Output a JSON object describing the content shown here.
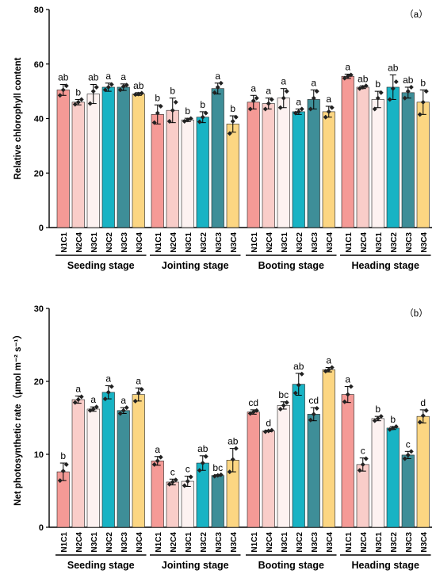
{
  "chart_data": [
    {
      "type": "bar",
      "panel_label": "（a）",
      "ylabel": "Relative chlorophyll content",
      "ylim": [
        0,
        80
      ],
      "yticks": [
        0,
        20,
        40,
        60,
        80
      ],
      "groups": [
        {
          "name": "Seeding stage",
          "bars": [
            {
              "label": "N1C1",
              "value": 50.5,
              "err": 2.0,
              "sig": "ab",
              "points": [
                48.5,
                50.5,
                52.0
              ]
            },
            {
              "label": "N2C4",
              "value": 46.0,
              "err": 1.0,
              "sig": "b",
              "points": [
                45.2,
                46.0,
                47.0
              ]
            },
            {
              "label": "N3C1",
              "value": 49.0,
              "err": 3.5,
              "sig": "ab",
              "points": [
                45.5,
                50.0,
                51.5
              ]
            },
            {
              "label": "N3C2",
              "value": 51.5,
              "err": 1.5,
              "sig": "a",
              "points": [
                50.5,
                51.5,
                52.5
              ]
            },
            {
              "label": "N3C3",
              "value": 51.5,
              "err": 1.2,
              "sig": "a",
              "points": [
                50.5,
                51.8,
                52.3
              ]
            },
            {
              "label": "N3C4",
              "value": 49.0,
              "err": 0.5,
              "sig": "ab",
              "points": [
                48.8,
                49.0,
                49.3
              ]
            }
          ]
        },
        {
          "name": "Jointing stage",
          "bars": [
            {
              "label": "N1C1",
              "value": 41.5,
              "err": 3.5,
              "sig": "b",
              "points": [
                38.5,
                42.0,
                44.5
              ]
            },
            {
              "label": "N2C4",
              "value": 43.0,
              "err": 4.5,
              "sig": "b",
              "points": [
                39.0,
                43.0,
                46.0
              ]
            },
            {
              "label": "N3C1",
              "value": 39.5,
              "err": 0.6,
              "sig": "b",
              "points": [
                39.0,
                39.5,
                40.0
              ]
            },
            {
              "label": "N3C2",
              "value": 40.5,
              "err": 2.0,
              "sig": "b",
              "points": [
                38.8,
                40.5,
                42.0
              ]
            },
            {
              "label": "N3C3",
              "value": 51.0,
              "err": 2.0,
              "sig": "a",
              "points": [
                49.5,
                51.5,
                53.0
              ]
            },
            {
              "label": "N3C4",
              "value": 38.0,
              "err": 3.0,
              "sig": "b",
              "points": [
                34.5,
                39.0,
                40.5
              ]
            }
          ]
        },
        {
          "name": "Booting stage",
          "bars": [
            {
              "label": "N1C1",
              "value": 46.0,
              "err": 2.5,
              "sig": "a",
              "points": [
                43.5,
                46.5,
                47.5
              ]
            },
            {
              "label": "N2C4",
              "value": 45.5,
              "err": 2.0,
              "sig": "a",
              "points": [
                43.5,
                45.5,
                47.0
              ]
            },
            {
              "label": "N3C1",
              "value": 47.5,
              "err": 3.5,
              "sig": "a",
              "points": [
                44.0,
                47.5,
                50.0
              ]
            },
            {
              "label": "N3C2",
              "value": 42.5,
              "err": 1.0,
              "sig": "a",
              "points": [
                42.0,
                42.5,
                43.5
              ]
            },
            {
              "label": "N3C3",
              "value": 47.0,
              "err": 3.5,
              "sig": "a",
              "points": [
                43.5,
                47.5,
                50.0
              ]
            },
            {
              "label": "N3C4",
              "value": 42.5,
              "err": 2.0,
              "sig": "a",
              "points": [
                40.5,
                42.5,
                44.0
              ]
            }
          ]
        },
        {
          "name": "Heading stage",
          "bars": [
            {
              "label": "N1C1",
              "value": 55.5,
              "err": 0.8,
              "sig": "a",
              "points": [
                54.8,
                55.5,
                56.0
              ]
            },
            {
              "label": "N2C4",
              "value": 51.5,
              "err": 0.5,
              "sig": "ab",
              "points": [
                51.0,
                51.5,
                52.0
              ]
            },
            {
              "label": "N3C1",
              "value": 47.0,
              "err": 3.0,
              "sig": "b",
              "points": [
                43.5,
                47.5,
                49.5
              ]
            },
            {
              "label": "N3C2",
              "value": 51.5,
              "err": 4.5,
              "sig": "ab",
              "points": [
                47.0,
                51.0,
                53.5
              ]
            },
            {
              "label": "N3C3",
              "value": 49.5,
              "err": 2.0,
              "sig": "ab",
              "points": [
                47.5,
                50.0,
                51.5
              ]
            },
            {
              "label": "N3C4",
              "value": 46.0,
              "err": 4.5,
              "sig": "b",
              "points": [
                41.5,
                46.0,
                50.0
              ]
            }
          ]
        }
      ]
    },
    {
      "type": "bar",
      "panel_label": "（b）",
      "ylabel": "Net photosynthetic rate（μmol m⁻² s⁻¹）",
      "ylim": [
        0,
        30
      ],
      "yticks": [
        0,
        10,
        20,
        30
      ],
      "groups": [
        {
          "name": "Seeding stage",
          "bars": [
            {
              "label": "N1C1",
              "value": 7.6,
              "err": 1.2,
              "sig": "b",
              "points": [
                6.4,
                7.7,
                8.6
              ]
            },
            {
              "label": "N2C4",
              "value": 17.5,
              "err": 0.5,
              "sig": "a",
              "points": [
                17.1,
                17.5,
                17.9
              ]
            },
            {
              "label": "N3C1",
              "value": 16.2,
              "err": 0.3,
              "sig": "a",
              "points": [
                16.0,
                16.2,
                16.5
              ]
            },
            {
              "label": "N3C2",
              "value": 18.5,
              "err": 0.9,
              "sig": "a",
              "points": [
                17.6,
                18.5,
                19.3
              ]
            },
            {
              "label": "N3C3",
              "value": 16.0,
              "err": 0.4,
              "sig": "a",
              "points": [
                15.6,
                16.0,
                16.4
              ]
            },
            {
              "label": "N3C4",
              "value": 18.2,
              "err": 0.9,
              "sig": "a",
              "points": [
                17.3,
                18.4,
                18.9
              ]
            }
          ]
        },
        {
          "name": "Jointing stage",
          "bars": [
            {
              "label": "N1C1",
              "value": 9.1,
              "err": 0.6,
              "sig": "a",
              "points": [
                8.6,
                9.1,
                9.6
              ]
            },
            {
              "label": "N2C4",
              "value": 6.2,
              "err": 0.4,
              "sig": "c",
              "points": [
                5.9,
                6.2,
                6.5
              ]
            },
            {
              "label": "N3C1",
              "value": 6.3,
              "err": 0.7,
              "sig": "c",
              "points": [
                5.7,
                6.3,
                6.9
              ]
            },
            {
              "label": "N3C2",
              "value": 8.8,
              "err": 1.0,
              "sig": "ab",
              "points": [
                7.8,
                8.8,
                9.7
              ]
            },
            {
              "label": "N3C3",
              "value": 7.1,
              "err": 0.1,
              "sig": "bc",
              "points": [
                7.0,
                7.1,
                7.2
              ]
            },
            {
              "label": "N3C4",
              "value": 9.2,
              "err": 1.6,
              "sig": "ab",
              "points": [
                7.6,
                9.3,
                10.8
              ]
            }
          ]
        },
        {
          "name": "Booting stage",
          "bars": [
            {
              "label": "N1C1",
              "value": 15.8,
              "err": 0.3,
              "sig": "cd",
              "points": [
                15.6,
                15.8,
                16.0
              ]
            },
            {
              "label": "N2C4",
              "value": 13.2,
              "err": 0.1,
              "sig": "d",
              "points": [
                13.1,
                13.2,
                13.3
              ]
            },
            {
              "label": "N3C1",
              "value": 16.7,
              "err": 0.5,
              "sig": "bc",
              "points": [
                16.2,
                16.7,
                17.1
              ]
            },
            {
              "label": "N3C2",
              "value": 19.6,
              "err": 1.5,
              "sig": "ab",
              "points": [
                18.4,
                19.5,
                21.0
              ]
            },
            {
              "label": "N3C3",
              "value": 15.5,
              "err": 0.9,
              "sig": "cd",
              "points": [
                14.7,
                15.5,
                16.3
              ]
            },
            {
              "label": "N3C4",
              "value": 21.6,
              "err": 0.3,
              "sig": "a",
              "points": [
                21.4,
                21.6,
                21.9
              ]
            }
          ]
        },
        {
          "name": "Heading stage",
          "bars": [
            {
              "label": "N1C1",
              "value": 18.2,
              "err": 1.1,
              "sig": "a",
              "points": [
                17.2,
                18.2,
                19.3
              ]
            },
            {
              "label": "N2C4",
              "value": 8.6,
              "err": 0.9,
              "sig": "c",
              "points": [
                7.8,
                8.6,
                9.4
              ]
            },
            {
              "label": "N3C1",
              "value": 14.9,
              "err": 0.3,
              "sig": "b",
              "points": [
                14.6,
                14.9,
                15.2
              ]
            },
            {
              "label": "N3C2",
              "value": 13.6,
              "err": 0.2,
              "sig": "b",
              "points": [
                13.4,
                13.6,
                13.8
              ]
            },
            {
              "label": "N3C3",
              "value": 9.9,
              "err": 0.5,
              "sig": "c",
              "points": [
                9.4,
                9.9,
                10.4
              ]
            },
            {
              "label": "N3C4",
              "value": 15.2,
              "err": 0.9,
              "sig": "d",
              "points": [
                14.4,
                15.3,
                16.0
              ]
            }
          ]
        }
      ]
    }
  ],
  "colors": {
    "N1C1": "#f59a96",
    "N2C4": "#f9cdc9",
    "N3C1": "#fdf2f1",
    "N3C2": "#18b3c4",
    "N3C3": "#3e8e98",
    "N3C4": "#fcd682"
  }
}
